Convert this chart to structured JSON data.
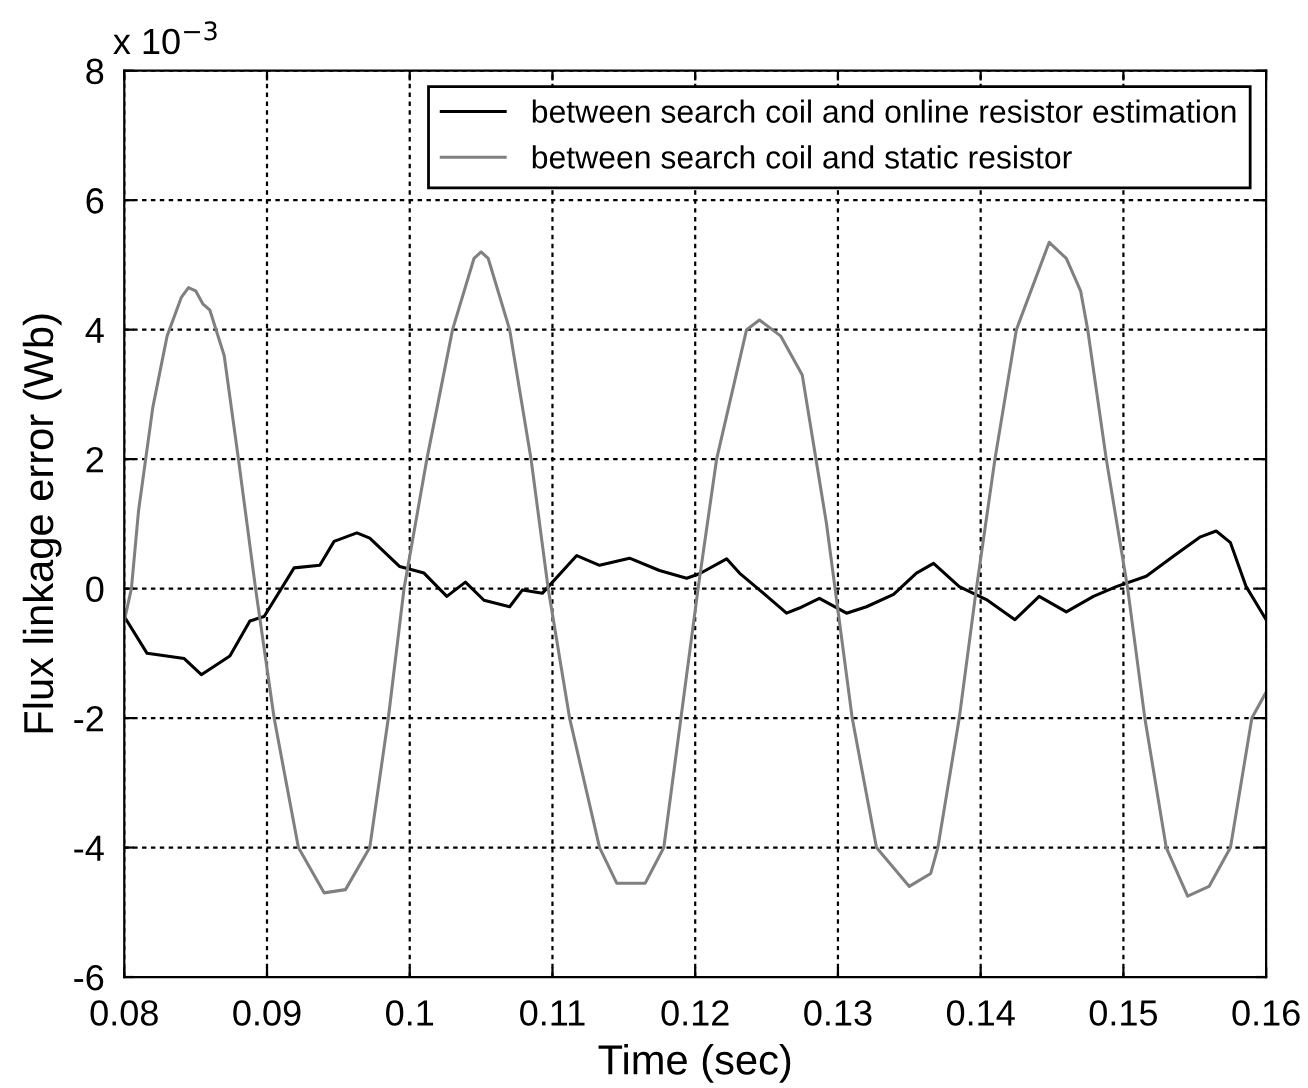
{
  "chart_data": {
    "type": "line",
    "xlabel": "Time (sec)",
    "ylabel": "Flux linkage error (Wb)",
    "annotations": [
      "x 10$^{−3}$"
    ],
    "xlim": [
      0.08,
      0.16
    ],
    "xticks": [
      0.08,
      0.09,
      0.1,
      0.11,
      0.12,
      0.13,
      0.14,
      0.15,
      0.16
    ],
    "ylim": [
      -6,
      8
    ],
    "yticks": [
      -6,
      -4,
      -2,
      0,
      2,
      4,
      6,
      8
    ],
    "grid": true,
    "legend": "top right",
    "line_style": "solid",
    "series": [
      {
        "name": "between search coil and online resistor estimation",
        "color": "#000000",
        "x": [
          0.08,
          0.0816,
          0.0842,
          0.0854,
          0.0874,
          0.0888,
          0.0898,
          0.0919,
          0.0937,
          0.0947,
          0.0963,
          0.0972,
          0.0993,
          0.101,
          0.1026,
          0.1039,
          0.1052,
          0.107,
          0.1079,
          0.1093,
          0.1117,
          0.1133,
          0.1154,
          0.1175,
          0.1194,
          0.1203,
          0.1222,
          0.1231,
          0.1245,
          0.1264,
          0.1273,
          0.1287,
          0.1306,
          0.132,
          0.1339,
          0.1355,
          0.1367,
          0.1385,
          0.1404,
          0.1424,
          0.1441,
          0.146,
          0.1479,
          0.1495,
          0.1516,
          0.1535,
          0.1554,
          0.1565,
          0.1575,
          0.1586,
          0.16
        ],
        "values": [
          -0.43,
          -1.0,
          -1.08,
          -1.33,
          -1.04,
          -0.5,
          -0.43,
          0.32,
          0.36,
          0.73,
          0.86,
          0.78,
          0.34,
          0.24,
          -0.12,
          0.1,
          -0.18,
          -0.28,
          -0.02,
          -0.07,
          0.51,
          0.36,
          0.47,
          0.28,
          0.16,
          0.23,
          0.46,
          0.24,
          -0.02,
          -0.38,
          -0.3,
          -0.15,
          -0.38,
          -0.28,
          -0.09,
          0.24,
          0.39,
          0.03,
          -0.17,
          -0.48,
          -0.12,
          -0.36,
          -0.12,
          0.03,
          0.19,
          0.5,
          0.8,
          0.89,
          0.71,
          0.03,
          -0.48
        ]
      },
      {
        "name": "between search coil and static resistor",
        "color": "#808080",
        "x": [
          0.08,
          0.0805,
          0.081,
          0.082,
          0.083,
          0.084,
          0.0845,
          0.085,
          0.0855,
          0.086,
          0.087,
          0.088,
          0.0892,
          0.0905,
          0.0922,
          0.094,
          0.0955,
          0.0972,
          0.0985,
          0.0996,
          0.1012,
          0.103,
          0.1045,
          0.105,
          0.1055,
          0.107,
          0.1085,
          0.1097,
          0.1112,
          0.1133,
          0.1145,
          0.1165,
          0.1178,
          0.119,
          0.1202,
          0.1215,
          0.1236,
          0.1245,
          0.126,
          0.1275,
          0.1292,
          0.1298,
          0.131,
          0.1327,
          0.135,
          0.1365,
          0.137,
          0.1385,
          0.1397,
          0.141,
          0.1425,
          0.1448,
          0.146,
          0.147,
          0.1475,
          0.1488,
          0.1503,
          0.1515,
          0.153,
          0.1545,
          0.156,
          0.1575,
          0.159,
          0.16
        ],
        "values": [
          -0.5,
          0,
          1.2,
          2.8,
          3.9,
          4.5,
          4.65,
          4.6,
          4.4,
          4.3,
          3.6,
          2.0,
          0,
          -2,
          -4,
          -4.7,
          -4.65,
          -4,
          -2,
          0,
          2,
          4,
          5.1,
          5.2,
          5.1,
          4,
          2,
          0,
          -2,
          -4,
          -4.55,
          -4.55,
          -4,
          -2,
          0,
          2,
          4,
          4.15,
          3.9,
          3.3,
          1,
          0,
          -2,
          -4,
          -4.6,
          -4.4,
          -4,
          -2,
          0,
          2,
          4,
          5.35,
          5.1,
          4.6,
          4,
          2,
          0,
          -2,
          -4,
          -4.75,
          -4.6,
          -4,
          -2,
          -1.6
        ]
      }
    ]
  }
}
